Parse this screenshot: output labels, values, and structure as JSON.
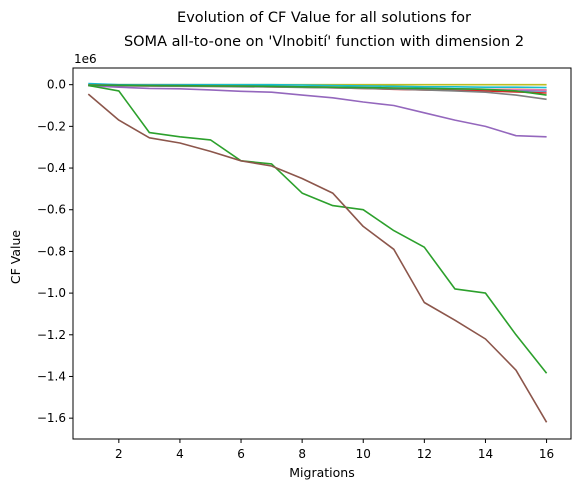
{
  "chart_data": {
    "type": "line",
    "title_line1": "Evolution of CF Value for all solutions for",
    "title_line2": "SOMA all-to-one on 'Vlnobití' function with dimension 2",
    "xlabel": "Migrations",
    "ylabel": "CF Value",
    "y_offset_text": "1e6",
    "xlim": [
      0.5,
      16.8
    ],
    "ylim": [
      -1.7,
      0.08
    ],
    "x_ticks": [
      2,
      4,
      6,
      8,
      10,
      12,
      14,
      16
    ],
    "x_tick_labels": [
      "2",
      "4",
      "6",
      "8",
      "10",
      "12",
      "14",
      "16"
    ],
    "y_ticks": [
      0.0,
      -0.2,
      -0.4,
      -0.6,
      -0.8,
      -1.0,
      -1.2,
      -1.4,
      -1.6
    ],
    "y_tick_labels": [
      "0.0",
      "−0.2",
      "−0.4",
      "−0.6",
      "−0.8",
      "−1.0",
      "−1.2",
      "−1.4",
      "−1.6"
    ],
    "x": [
      1,
      2,
      3,
      4,
      5,
      6,
      7,
      8,
      9,
      10,
      11,
      12,
      13,
      14,
      15,
      16
    ],
    "series": [
      {
        "color": "#bcbd22",
        "values": [
          0.0,
          0.0,
          0.0,
          0.0,
          0.0,
          0.0,
          0.0,
          0.0,
          0.0,
          0.0,
          0.0,
          0.0,
          0.0,
          0.0,
          0.0,
          0.0
        ]
      },
      {
        "color": "#17becf",
        "values": [
          0.005,
          0.0,
          0.0,
          0.0,
          0.0,
          0.0,
          0.0,
          -0.002,
          -0.004,
          -0.006,
          -0.008,
          -0.01,
          -0.01,
          -0.012,
          -0.012,
          -0.014
        ]
      },
      {
        "color": "#1f77b4",
        "values": [
          0.0,
          -0.002,
          -0.003,
          -0.004,
          -0.005,
          -0.006,
          -0.008,
          -0.01,
          -0.012,
          -0.015,
          -0.018,
          -0.02,
          -0.022,
          -0.025,
          -0.028,
          -0.03
        ]
      },
      {
        "color": "#ff7f0e",
        "values": [
          -0.003,
          -0.005,
          -0.006,
          -0.007,
          -0.008,
          -0.009,
          -0.01,
          -0.012,
          -0.014,
          -0.016,
          -0.018,
          -0.02,
          -0.02,
          -0.022,
          -0.022,
          -0.025
        ]
      },
      {
        "color": "#d62728",
        "values": [
          -0.002,
          -0.004,
          -0.005,
          -0.006,
          -0.007,
          -0.008,
          -0.01,
          -0.012,
          -0.015,
          -0.018,
          -0.022,
          -0.025,
          -0.028,
          -0.03,
          -0.035,
          -0.04
        ]
      },
      {
        "color": "#e377c2",
        "values": [
          -0.001,
          -0.003,
          -0.004,
          -0.005,
          -0.006,
          -0.007,
          -0.008,
          -0.01,
          -0.012,
          -0.014,
          -0.016,
          -0.018,
          -0.02,
          -0.022,
          -0.024,
          -0.026
        ]
      },
      {
        "color": "#7f7f7f",
        "values": [
          -0.005,
          -0.006,
          -0.007,
          -0.008,
          -0.009,
          -0.01,
          -0.011,
          -0.013,
          -0.015,
          -0.018,
          -0.021,
          -0.025,
          -0.03,
          -0.036,
          -0.05,
          -0.07
        ]
      },
      {
        "color": "#9467bd",
        "values": [
          -0.005,
          -0.012,
          -0.018,
          -0.02,
          -0.025,
          -0.032,
          -0.036,
          -0.05,
          -0.063,
          -0.083,
          -0.1,
          -0.135,
          -0.17,
          -0.2,
          -0.245,
          -0.25
        ]
      },
      {
        "color": "#2ca02c",
        "values": [
          -0.004,
          -0.03,
          -0.23,
          -0.25,
          -0.265,
          -0.365,
          -0.38,
          -0.52,
          -0.58,
          -0.6,
          -0.7,
          -0.78,
          -0.98,
          -1.0,
          -1.2,
          -1.385
        ]
      },
      {
        "color": "#8c564b",
        "values": [
          -0.045,
          -0.17,
          -0.255,
          -0.28,
          -0.32,
          -0.365,
          -0.39,
          -0.45,
          -0.52,
          -0.68,
          -0.79,
          -1.045,
          -1.13,
          -1.22,
          -1.37,
          -1.62
        ]
      },
      {
        "color": "#2ca02c",
        "values": [
          -0.002,
          -0.003,
          -0.004,
          -0.005,
          -0.006,
          -0.007,
          -0.008,
          -0.01,
          -0.012,
          -0.014,
          -0.016,
          -0.018,
          -0.02,
          -0.022,
          -0.03,
          -0.05
        ]
      }
    ]
  }
}
